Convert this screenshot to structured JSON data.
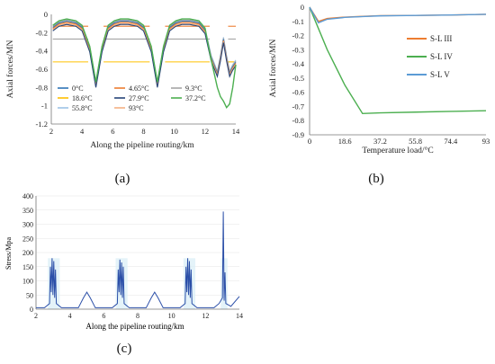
{
  "captions": {
    "a": "(a)",
    "b": "(b)",
    "c": "(c)"
  },
  "chart_data": [
    {
      "id": "a",
      "type": "line",
      "xlabel": "Along the pipeline routing/km",
      "ylabel": "Axial forces/MN",
      "xlim": [
        2,
        14
      ],
      "ylim": [
        -1.2,
        0
      ],
      "xticks": [
        "2",
        "4",
        "6",
        "8",
        "10",
        "12",
        "14"
      ],
      "yticks": [
        "0",
        "-0.2",
        "-0.4",
        "-0.6",
        "-0.8",
        "-1",
        "-1.2"
      ],
      "legend_position": "bottom",
      "series": [
        {
          "name": "0°C",
          "color": "#2e75b6",
          "y": [
            -0.05,
            -0.05,
            -0.05,
            -0.05,
            -0.05,
            -0.05,
            -0.05
          ]
        },
        {
          "name": "4.65°C",
          "color": "#ed7d31",
          "y": [
            -0.13,
            -0.13,
            -0.13,
            -0.13,
            -0.13,
            -0.13,
            -0.13
          ]
        },
        {
          "name": "9.3°C",
          "color": "#a5a5a5",
          "y": [
            -0.27,
            -0.27,
            -0.27,
            -0.27,
            -0.27,
            -0.27,
            -0.27
          ]
        },
        {
          "name": "18.6°C",
          "color": "#ffc000",
          "y": [
            -0.52,
            -0.52,
            -0.52,
            -0.52,
            -0.52,
            -0.52,
            -0.52
          ]
        },
        {
          "name": "27.9°C",
          "color": "#264478",
          "y": [
            -0.76,
            -0.76,
            -0.76,
            -0.76,
            -0.76,
            -0.76,
            -0.76
          ]
        },
        {
          "name": "37.2°C",
          "color": "#4caf50",
          "y": [
            -0.08,
            -0.08,
            -0.08,
            -0.08,
            -0.08,
            -0.08,
            -0.08
          ]
        },
        {
          "name": "55.8°C",
          "color": "#9dc3e6",
          "y": [
            -0.1,
            -0.1,
            -0.1,
            -0.1,
            -0.1,
            -0.1,
            -0.1
          ]
        },
        {
          "name": "93°C",
          "color": "#f4b183",
          "y": [
            -0.12,
            -0.12,
            -0.12,
            -0.12,
            -0.12,
            -0.12,
            -0.12
          ]
        }
      ],
      "envelope": {
        "x": [
          2.1,
          2.5,
          3.0,
          3.6,
          4.0,
          4.5,
          4.9,
          5.3,
          5.7,
          6.1,
          6.5,
          7.0,
          7.6,
          8.0,
          8.5,
          8.9,
          9.3,
          9.7,
          10.1,
          10.5,
          11.0,
          11.6,
          12.0,
          12.4,
          12.8,
          13.0,
          13.2,
          13.4,
          13.6,
          13.8,
          14.0
        ],
        "top": [
          -0.12,
          -0.07,
          -0.05,
          -0.07,
          -0.12,
          -0.35,
          -0.74,
          -0.35,
          -0.12,
          -0.07,
          -0.05,
          -0.05,
          -0.07,
          -0.12,
          -0.35,
          -0.74,
          -0.35,
          -0.12,
          -0.07,
          -0.05,
          -0.05,
          -0.07,
          -0.15,
          -0.45,
          -0.62,
          -0.45,
          -0.25,
          -0.45,
          -0.62,
          -0.55,
          -0.5
        ],
        "green": [
          -0.12,
          -0.07,
          -0.05,
          -0.07,
          -0.12,
          -0.35,
          -0.74,
          -0.35,
          -0.12,
          -0.07,
          -0.05,
          -0.05,
          -0.07,
          -0.12,
          -0.35,
          -0.74,
          -0.35,
          -0.12,
          -0.07,
          -0.05,
          -0.05,
          -0.07,
          -0.15,
          -0.5,
          -0.8,
          -0.9,
          -0.95,
          -1.02,
          -0.98,
          -0.8,
          -0.55
        ]
      }
    },
    {
      "id": "b",
      "type": "line",
      "xlabel": "Temperature load/°C",
      "ylabel": "Axial forces/MN",
      "xlim": [
        0,
        93
      ],
      "ylim": [
        -0.9,
        0
      ],
      "xticks": [
        "0",
        "18.6",
        "37.2",
        "55.8",
        "74.4",
        "93"
      ],
      "yticks": [
        "0",
        "-0.1",
        "-0.2",
        "-0.3",
        "-0.4",
        "-0.5",
        "-0.6",
        "-0.7",
        "-0.8",
        "-0.9"
      ],
      "legend_position": "right",
      "series": [
        {
          "name": "S-L III",
          "color": "#ed7d31",
          "x": [
            0,
            4.65,
            9.3,
            18.6,
            27.9,
            37.2,
            55.8,
            74.4,
            93
          ],
          "y": [
            0,
            -0.1,
            -0.08,
            -0.07,
            -0.065,
            -0.06,
            -0.058,
            -0.055,
            -0.05
          ]
        },
        {
          "name": "S-L IV",
          "color": "#4caf50",
          "x": [
            0,
            4.65,
            9.3,
            18.6,
            27.9,
            37.2,
            55.8,
            74.4,
            93
          ],
          "y": [
            0,
            -0.15,
            -0.3,
            -0.55,
            -0.75,
            -0.745,
            -0.74,
            -0.735,
            -0.73
          ]
        },
        {
          "name": "S-L V",
          "color": "#5b9bd5",
          "x": [
            0,
            4.65,
            9.3,
            18.6,
            27.9,
            37.2,
            55.8,
            74.4,
            93
          ],
          "y": [
            0,
            -0.11,
            -0.085,
            -0.072,
            -0.066,
            -0.061,
            -0.058,
            -0.055,
            -0.05
          ]
        }
      ]
    },
    {
      "id": "c",
      "type": "line",
      "xlabel": "Along the pipeline routing/km",
      "ylabel": "Stress/Mpa",
      "xlim": [
        2,
        14
      ],
      "ylim": [
        0,
        400
      ],
      "xticks": [
        "2",
        "4",
        "6",
        "8",
        "10",
        "12",
        "14"
      ],
      "yticks": [
        "0",
        "50",
        "100",
        "150",
        "200",
        "250",
        "300",
        "350",
        "400"
      ],
      "series": [
        {
          "name": "",
          "color": "#2b4fa8",
          "x": [
            2.0,
            2.5,
            2.8,
            2.85,
            2.9,
            2.95,
            3.0,
            3.05,
            3.1,
            3.15,
            3.2,
            3.5,
            4.0,
            4.5,
            4.8,
            5.0,
            5.2,
            5.5,
            6.0,
            6.5,
            6.8,
            6.85,
            6.9,
            6.95,
            7.0,
            7.05,
            7.1,
            7.15,
            7.2,
            7.5,
            8.0,
            8.5,
            8.8,
            9.0,
            9.2,
            9.5,
            10.0,
            10.5,
            10.8,
            10.85,
            10.9,
            10.95,
            11.0,
            11.05,
            11.1,
            11.15,
            11.2,
            11.5,
            12.0,
            12.5,
            12.8,
            13.0,
            13.05,
            13.1,
            13.15,
            13.2,
            13.5,
            14.0
          ],
          "y": [
            5,
            5,
            20,
            150,
            60,
            180,
            50,
            170,
            40,
            140,
            20,
            5,
            5,
            5,
            40,
            60,
            40,
            5,
            5,
            5,
            20,
            140,
            60,
            175,
            50,
            165,
            40,
            150,
            20,
            5,
            5,
            5,
            40,
            60,
            40,
            5,
            5,
            5,
            20,
            150,
            60,
            180,
            50,
            170,
            40,
            140,
            20,
            5,
            5,
            5,
            20,
            40,
            345,
            30,
            130,
            20,
            10,
            45
          ]
        }
      ]
    }
  ]
}
